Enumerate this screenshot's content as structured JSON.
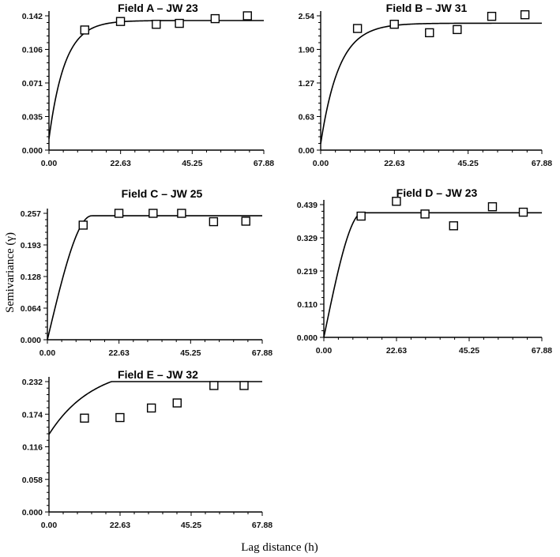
{
  "figure": {
    "ylabel": "Semivariance (γ)",
    "xlabel": "Lag distance (h)"
  },
  "chart_data": [
    {
      "type": "scatter",
      "title": "Field A – JW 23",
      "xlim": [
        0,
        67.88
      ],
      "ylim": [
        0,
        0.142
      ],
      "xticks": [
        "0.00",
        "22.63",
        "45.25",
        "67.88"
      ],
      "yticks": [
        "0.000",
        "0.035",
        "0.071",
        "0.106",
        "0.142"
      ],
      "points": {
        "x": [
          11.3,
          22.6,
          33.9,
          41.2,
          52.5,
          62.7
        ],
        "y": [
          0.127,
          0.136,
          0.133,
          0.134,
          0.139,
          0.142
        ]
      },
      "model": {
        "type": "exponential",
        "nugget": 0.012,
        "sill": 0.137,
        "range": 15
      }
    },
    {
      "type": "scatter",
      "title": "Field B – JW 31",
      "xlim": [
        0,
        67.88
      ],
      "ylim": [
        0,
        2.54
      ],
      "xticks": [
        "0.00",
        "22.63",
        "45.25",
        "67.88"
      ],
      "yticks": [
        "0.00",
        "0.63",
        "1.27",
        "1.90",
        "2.54"
      ],
      "points": {
        "x": [
          11.3,
          22.6,
          33.4,
          41.9,
          52.5,
          62.7
        ],
        "y": [
          2.3,
          2.38,
          2.22,
          2.28,
          2.53,
          2.56
        ]
      },
      "model": {
        "type": "exponential",
        "nugget": 0.12,
        "sill": 2.4,
        "range": 17
      }
    },
    {
      "type": "scatter",
      "title": "Field C – JW 25",
      "xlim": [
        0,
        67.88
      ],
      "ylim": [
        0,
        0.257
      ],
      "xticks": [
        "0.00",
        "22.63",
        "45.25",
        "67.88"
      ],
      "yticks": [
        "0.000",
        "0.064",
        "0.128",
        "0.193",
        "0.257"
      ],
      "points": {
        "x": [
          11.3,
          22.6,
          33.4,
          42.4,
          52.5,
          62.7
        ],
        "y": [
          0.233,
          0.257,
          0.257,
          0.257,
          0.24,
          0.241
        ]
      },
      "model": {
        "type": "spherical",
        "nugget": 0.0,
        "sill": 0.252,
        "range": 14
      }
    },
    {
      "type": "scatter",
      "title": "Field D – JW 23",
      "xlim": [
        0,
        67.88
      ],
      "ylim": [
        0,
        0.439
      ],
      "xticks": [
        "0.00",
        "22.63",
        "45.25",
        "67.88"
      ],
      "yticks": [
        "0.000",
        "0.110",
        "0.219",
        "0.329",
        "0.439"
      ],
      "points": {
        "x": [
          11.6,
          22.6,
          31.5,
          40.4,
          52.5,
          62.1
        ],
        "y": [
          0.401,
          0.45,
          0.408,
          0.369,
          0.432,
          0.414
        ]
      },
      "model": {
        "type": "spherical",
        "nugget": 0.0,
        "sill": 0.412,
        "range": 12
      }
    },
    {
      "type": "scatter",
      "title": "Field E – JW 32",
      "xlim": [
        0,
        67.88
      ],
      "ylim": [
        0,
        0.232
      ],
      "xticks": [
        "0.00",
        "22.63",
        "45.25",
        "67.88"
      ],
      "yticks": [
        "0.000",
        "0.058",
        "0.116",
        "0.174",
        "0.232"
      ],
      "points": {
        "x": [
          11.3,
          22.6,
          32.6,
          40.8,
          52.5,
          62.1
        ],
        "y": [
          0.167,
          0.168,
          0.185,
          0.194,
          0.225,
          0.225
        ]
      },
      "model": {
        "type": "exponential",
        "nugget": 0.138,
        "sill": 0.262,
        "range": 42
      }
    }
  ]
}
